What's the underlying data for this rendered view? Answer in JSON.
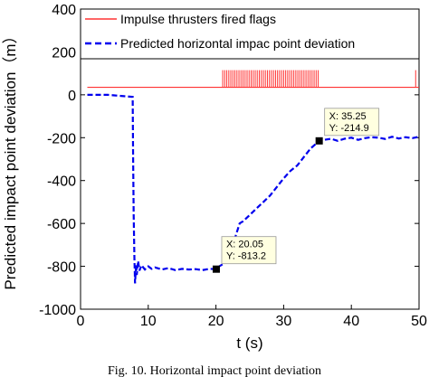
{
  "chart_data": {
    "type": "line",
    "xlabel": "t (s)",
    "ylabel": "Predicted  impact point deviation（m）",
    "xlim": [
      0,
      50
    ],
    "ylim": [
      -1000,
      400
    ],
    "xticks": [
      0,
      10,
      20,
      30,
      40,
      50
    ],
    "yticks": [
      400,
      200,
      0,
      -200,
      -400,
      -600,
      -800,
      -1000
    ],
    "grid": false,
    "legend_position": "top",
    "series": [
      {
        "name": "Impulse thrusters fired flags",
        "color": "#ff3333",
        "style": "solid",
        "baseline": 35,
        "pulse_height": 80,
        "pulse_times": [
          21.0,
          21.3,
          21.6,
          21.9,
          22.2,
          22.5,
          22.8,
          23.1,
          23.4,
          23.7,
          24.0,
          24.3,
          24.6,
          24.9,
          25.2,
          25.5,
          25.8,
          26.1,
          26.4,
          26.7,
          27.0,
          27.3,
          27.6,
          27.9,
          28.2,
          28.5,
          28.8,
          29.1,
          29.4,
          29.7,
          30.0,
          30.3,
          30.6,
          30.9,
          31.2,
          31.5,
          31.8,
          32.1,
          32.4,
          32.7,
          33.0,
          33.3,
          33.6,
          33.9,
          34.2,
          34.5,
          34.8,
          35.1,
          49.5
        ]
      },
      {
        "name": "Predicted horizontal impac point deviation",
        "color": "#0000ee",
        "style": "dashed",
        "x": [
          1,
          4,
          7.7,
          7.75,
          7.85,
          7.95,
          8.05,
          8.2,
          8.3,
          8.5,
          8.7,
          9,
          9.5,
          10,
          10.5,
          11,
          12,
          13,
          14,
          15,
          16,
          17,
          18,
          19,
          20.05,
          20.5,
          21,
          21.5,
          22,
          22.5,
          23,
          23.5,
          24,
          25,
          26,
          27,
          28,
          29,
          30,
          31,
          32,
          33,
          34,
          35.25,
          36,
          37,
          38,
          39,
          40,
          41,
          42,
          43,
          44,
          45,
          46,
          47,
          48,
          49,
          50
        ],
        "y": [
          0,
          0,
          -10,
          -250,
          -560,
          -760,
          -880,
          -790,
          -840,
          -775,
          -820,
          -795,
          -815,
          -800,
          -812,
          -805,
          -815,
          -808,
          -818,
          -812,
          -815,
          -813,
          -818,
          -812,
          -813.2,
          -800,
          -790,
          -760,
          -730,
          -700,
          -650,
          -600,
          -590,
          -560,
          -530,
          -500,
          -470,
          -430,
          -390,
          -355,
          -330,
          -290,
          -250,
          -214.9,
          -210,
          -205,
          -215,
          -205,
          -200,
          -210,
          -202,
          -198,
          -200,
          -206,
          -196,
          -204,
          -198,
          -202,
          -196
        ]
      }
    ],
    "annotations": [
      {
        "x": 20.05,
        "y": -813.2,
        "line1": "X: 20.05",
        "line2": "Y: -813.2"
      },
      {
        "x": 35.25,
        "y": -214.9,
        "line1": "X: 35.25",
        "line2": "Y: -214.9"
      }
    ],
    "caption": "Fig. 10. Horizontal impact point deviation"
  }
}
